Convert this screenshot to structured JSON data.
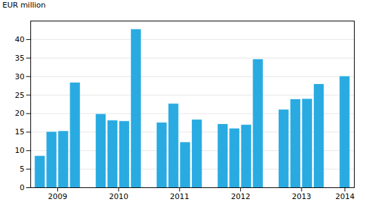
{
  "chart_data": {
    "type": "bar",
    "categories": [
      "2009",
      null,
      null,
      null,
      "2010",
      null,
      null,
      null,
      "2011",
      null,
      null,
      null,
      "2012",
      null,
      null,
      null,
      "2013",
      null,
      null,
      null,
      "2014"
    ],
    "values": [
      8.5,
      15.0,
      15.2,
      28.3,
      19.8,
      18.1,
      17.9,
      42.7,
      17.5,
      22.6,
      12.2,
      18.3,
      17.1,
      15.9,
      16.9,
      34.6,
      21.0,
      23.8,
      23.9,
      27.9,
      30.0
    ],
    "color": "#29abe2",
    "ylabel": "EUR million",
    "ylim": [
      0,
      45
    ],
    "yticks": [
      0,
      5,
      10,
      15,
      20,
      25,
      30,
      35,
      40
    ],
    "grid": true
  }
}
